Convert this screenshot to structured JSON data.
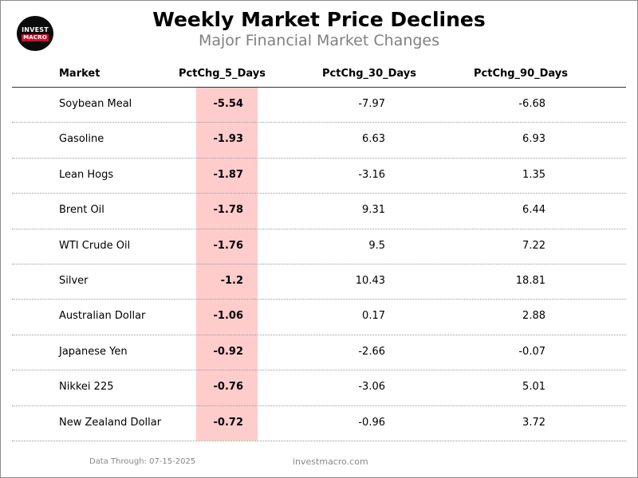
{
  "logo": {
    "line1": "INVEST",
    "line2": "MACRO"
  },
  "chart_data": {
    "type": "table",
    "title": "Weekly Market Price Declines",
    "subtitle": "Major Financial Market Changes",
    "columns": [
      "Market",
      "PctChg_5_Days",
      "PctChg_30_Days",
      "PctChg_90_Days"
    ],
    "highlight_column": "PctChg_5_Days",
    "highlight_color": "#ffcccc",
    "rows": [
      {
        "market": "Soybean Meal",
        "d5": "-5.54",
        "d30": "-7.97",
        "d90": "-6.68"
      },
      {
        "market": "Gasoline",
        "d5": "-1.93",
        "d30": "6.63",
        "d90": "6.93"
      },
      {
        "market": "Lean Hogs",
        "d5": "-1.87",
        "d30": "-3.16",
        "d90": "1.35"
      },
      {
        "market": "Brent Oil",
        "d5": "-1.78",
        "d30": "9.31",
        "d90": "6.44"
      },
      {
        "market": "WTI Crude Oil",
        "d5": "-1.76",
        "d30": "9.5",
        "d90": "7.22"
      },
      {
        "market": "Silver",
        "d5": "-1.2",
        "d30": "10.43",
        "d90": "18.81"
      },
      {
        "market": "Australian Dollar",
        "d5": "-1.06",
        "d30": "0.17",
        "d90": "2.88"
      },
      {
        "market": "Japanese Yen",
        "d5": "-0.92",
        "d30": "-2.66",
        "d90": "-0.07"
      },
      {
        "market": "Nikkei 225",
        "d5": "-0.76",
        "d30": "-3.06",
        "d90": "5.01"
      },
      {
        "market": "New Zealand Dollar",
        "d5": "-0.72",
        "d30": "-0.96",
        "d90": "3.72"
      }
    ]
  },
  "footer": {
    "data_through": "Data Through: 07-15-2025",
    "site": "investmacro.com"
  }
}
